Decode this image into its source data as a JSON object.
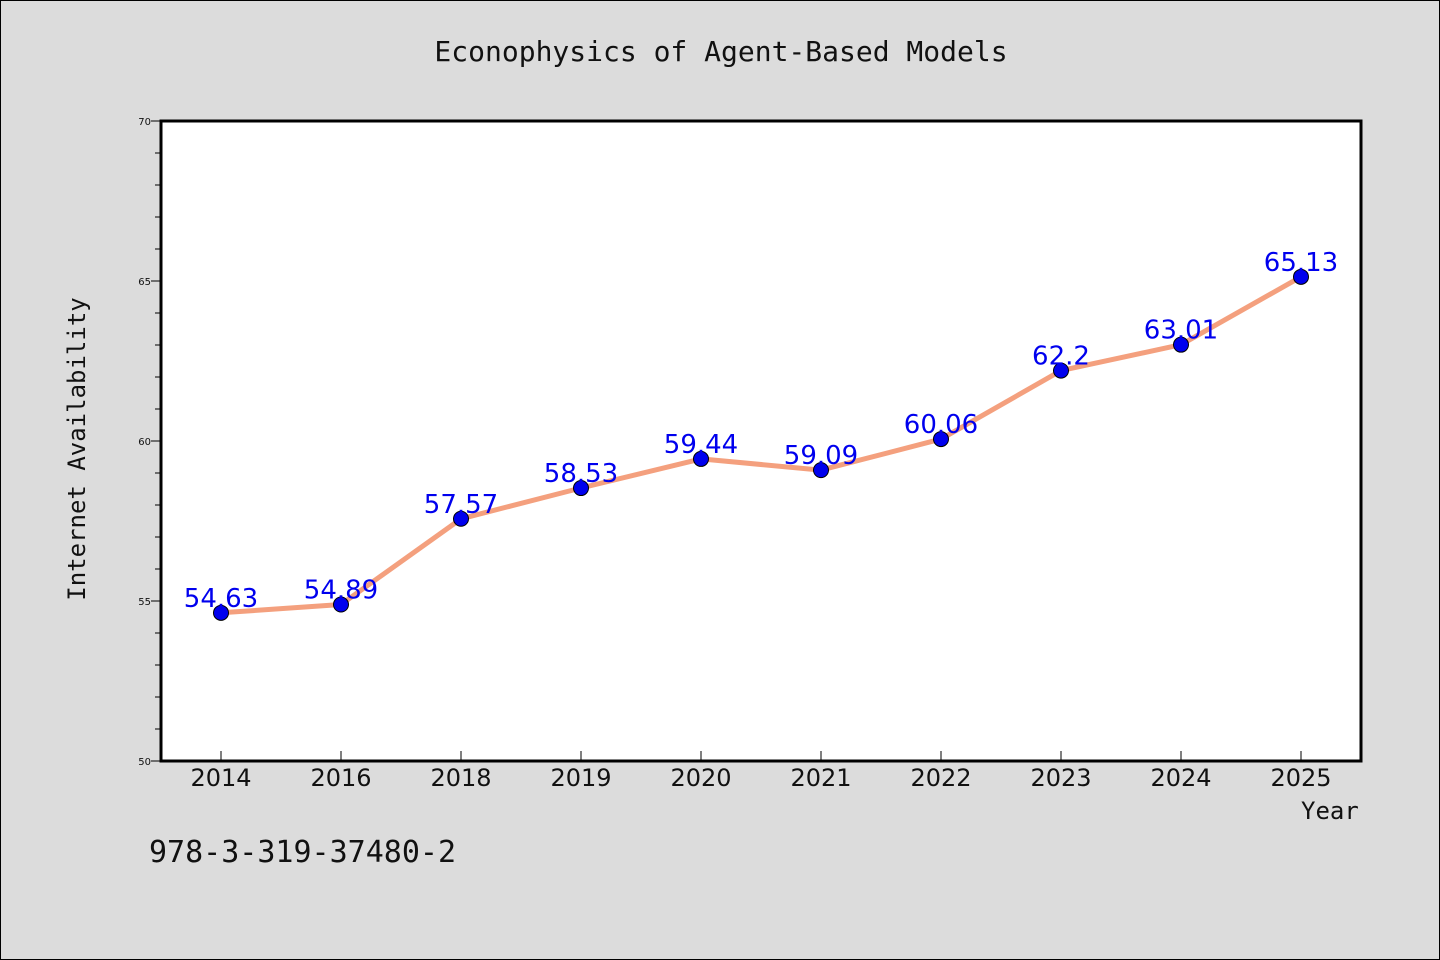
{
  "chart_data": {
    "type": "line",
    "title": "Econophysics of Agent-Based Models",
    "xlabel": "Year",
    "ylabel": "Internet Availability",
    "categories": [
      "2014",
      "2016",
      "2018",
      "2019",
      "2020",
      "2021",
      "2022",
      "2023",
      "2024",
      "2025"
    ],
    "series": [
      {
        "values": [
          54.63,
          54.89,
          57.57,
          58.53,
          59.44,
          59.09,
          60.06,
          62.2,
          63.01,
          65.13
        ],
        "line_color": "#f4a07e",
        "marker_color": "#0000ee"
      }
    ],
    "ylim": [
      50,
      70
    ],
    "yticks": [
      50,
      55,
      60,
      65,
      70
    ],
    "grid": false,
    "legend": "none",
    "data_label_color": "#0000ee"
  },
  "footer": {
    "isbn": "978-3-319-37480-2"
  }
}
